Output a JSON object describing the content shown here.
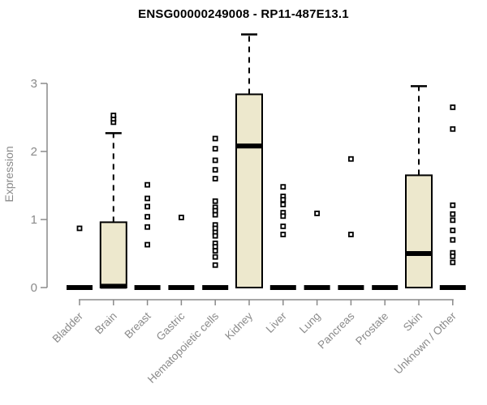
{
  "chart_data": {
    "type": "boxplot",
    "title": "ENSG00000249008 - RP11-487E13.1",
    "ylabel": "Expression",
    "yticks": [
      0,
      1,
      2,
      3
    ],
    "ylim": [
      0,
      3.85
    ],
    "grid": false,
    "legend": "none",
    "colors": {
      "box_fill": "#ede8cd",
      "box_stroke": "#000000",
      "axis": "#8a8a8a",
      "title": "#000000",
      "background": "#ffffff"
    },
    "categories": [
      "Bladder",
      "Brain",
      "Breast",
      "Gastric",
      "Hematopoietic cells",
      "Kidney",
      "Liver",
      "Lung",
      "Pancreas",
      "Prostate",
      "Skin",
      "Unknown / Other"
    ],
    "series": [
      {
        "label": "Bladder",
        "median": 0,
        "q1": 0,
        "q3": 0,
        "whisker_high": 0,
        "whisker_low": 0,
        "outliers": [
          0.87
        ]
      },
      {
        "label": "Brain",
        "median": 0.02,
        "q1": 0,
        "q3": 0.96,
        "whisker_high": 2.27,
        "whisker_low": 0,
        "outliers": [
          2.43,
          2.48,
          2.53
        ]
      },
      {
        "label": "Breast",
        "median": 0,
        "q1": 0,
        "q3": 0,
        "whisker_high": 0,
        "whisker_low": 0,
        "outliers": [
          1.51,
          1.31,
          1.19,
          1.04,
          0.89,
          0.63
        ]
      },
      {
        "label": "Gastric",
        "median": 0,
        "q1": 0,
        "q3": 0,
        "whisker_high": 0,
        "whisker_low": 0,
        "outliers": [
          1.03
        ]
      },
      {
        "label": "Hematopoietic cells",
        "median": 0,
        "q1": 0,
        "q3": 0,
        "whisker_high": 0,
        "whisker_low": 0,
        "outliers": [
          2.19,
          2.04,
          1.87,
          1.73,
          1.6,
          1.27,
          1.18,
          1.13,
          1.07,
          0.92,
          0.87,
          0.81,
          0.76,
          0.65,
          0.6,
          0.54,
          0.45,
          0.33
        ]
      },
      {
        "label": "Kidney",
        "median": 2.08,
        "q1": 0,
        "q3": 2.84,
        "whisker_high": 3.72,
        "whisker_low": 0,
        "outliers": []
      },
      {
        "label": "Liver",
        "median": 0,
        "q1": 0,
        "q3": 0,
        "whisker_high": 0,
        "whisker_low": 0,
        "outliers": [
          1.48,
          1.34,
          1.29,
          1.22,
          1.1,
          1.05,
          0.9,
          0.78
        ]
      },
      {
        "label": "Lung",
        "median": 0,
        "q1": 0,
        "q3": 0,
        "whisker_high": 0,
        "whisker_low": 0,
        "outliers": [
          1.09
        ]
      },
      {
        "label": "Pancreas",
        "median": 0,
        "q1": 0,
        "q3": 0,
        "whisker_high": 0,
        "whisker_low": 0,
        "outliers": [
          1.89,
          0.78
        ]
      },
      {
        "label": "Prostate",
        "median": 0,
        "q1": 0,
        "q3": 0,
        "whisker_high": 0,
        "whisker_low": 0,
        "outliers": []
      },
      {
        "label": "Skin",
        "median": 0.5,
        "q1": 0,
        "q3": 1.65,
        "whisker_high": 2.96,
        "whisker_low": 0,
        "outliers": []
      },
      {
        "label": "Unknown / Other",
        "median": 0,
        "q1": 0,
        "q3": 0,
        "whisker_high": 0,
        "whisker_low": 0,
        "outliers": [
          2.65,
          2.33,
          1.21,
          1.08,
          0.99,
          0.84,
          0.7,
          0.51,
          0.46,
          0.37
        ]
      }
    ]
  }
}
